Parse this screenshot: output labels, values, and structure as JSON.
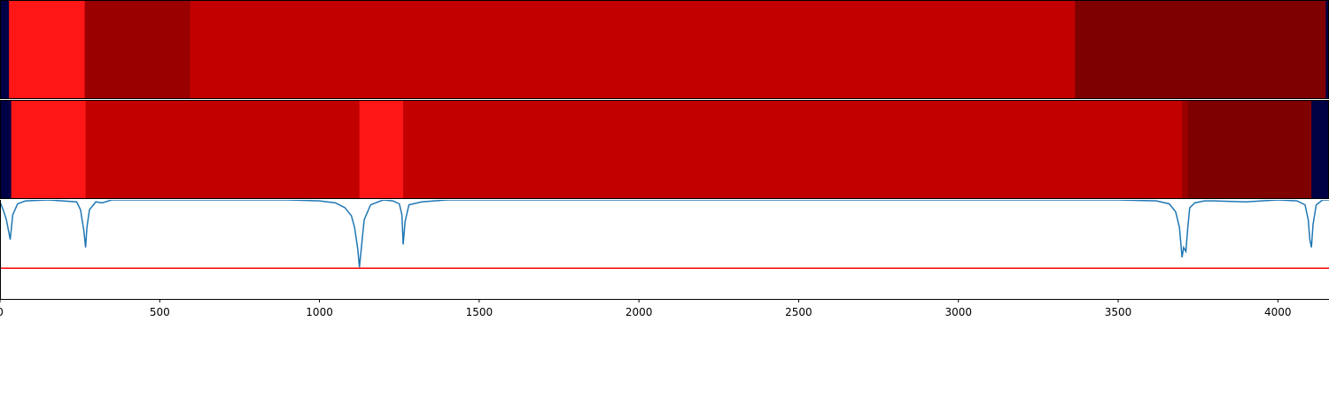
{
  "chart_data": [
    {
      "type": "heatmap",
      "xlim": [
        0,
        4160
      ],
      "segments": [
        {
          "start": 0,
          "end": 28,
          "value": 0.0
        },
        {
          "start": 28,
          "end": 265,
          "value": 0.85
        },
        {
          "start": 265,
          "end": 595,
          "value": 0.55
        },
        {
          "start": 595,
          "end": 3365,
          "value": 0.7
        },
        {
          "start": 3365,
          "end": 4150,
          "value": 0.4
        },
        {
          "start": 4150,
          "end": 4160,
          "value": 0.0
        }
      ]
    },
    {
      "type": "heatmap",
      "xlim": [
        0,
        4160
      ],
      "segments": [
        {
          "start": 0,
          "end": 35,
          "value": 0.0
        },
        {
          "start": 35,
          "end": 268,
          "value": 0.85
        },
        {
          "start": 268,
          "end": 1125,
          "value": 0.7
        },
        {
          "start": 1125,
          "end": 1262,
          "value": 0.85
        },
        {
          "start": 1262,
          "end": 3700,
          "value": 0.7
        },
        {
          "start": 3700,
          "end": 3718,
          "value": 0.6
        },
        {
          "start": 3718,
          "end": 4105,
          "value": 0.4
        },
        {
          "start": 4105,
          "end": 4160,
          "value": 0.0
        }
      ]
    },
    {
      "type": "line",
      "xlim": [
        0,
        4160
      ],
      "ylim": [
        0,
        1
      ],
      "x_ticks": [
        "0",
        "500",
        "1000",
        "1500",
        "2000",
        "2500",
        "3000",
        "3500",
        "4000"
      ],
      "threshold": 0.31,
      "series_color": "#1f77b4",
      "threshold_color": "#ff0000",
      "x": [
        0,
        10,
        20,
        32,
        40,
        55,
        80,
        150,
        240,
        252,
        262,
        268,
        272,
        280,
        300,
        320,
        350,
        600,
        900,
        1000,
        1050,
        1080,
        1100,
        1110,
        1120,
        1125,
        1130,
        1140,
        1160,
        1200,
        1230,
        1250,
        1258,
        1262,
        1268,
        1280,
        1320,
        1400,
        1600,
        2000,
        3000,
        3500,
        3620,
        3660,
        3680,
        3692,
        3700,
        3705,
        3712,
        3718,
        3724,
        3740,
        3770,
        3800,
        3900,
        4000,
        4060,
        4085,
        4095,
        4100,
        4105,
        4110,
        4120,
        4140,
        4160
      ],
      "y": [
        0.98,
        0.9,
        0.8,
        0.6,
        0.85,
        0.96,
        0.99,
        1.0,
        0.98,
        0.9,
        0.7,
        0.52,
        0.72,
        0.9,
        0.98,
        0.97,
        1.0,
        1.0,
        1.0,
        0.99,
        0.97,
        0.92,
        0.84,
        0.72,
        0.5,
        0.32,
        0.48,
        0.8,
        0.95,
        1.0,
        0.99,
        0.96,
        0.85,
        0.55,
        0.78,
        0.95,
        0.98,
        1.0,
        1.0,
        1.0,
        1.0,
        1.0,
        0.99,
        0.96,
        0.88,
        0.72,
        0.42,
        0.52,
        0.48,
        0.72,
        0.92,
        0.97,
        0.99,
        0.99,
        0.98,
        1.0,
        0.99,
        0.95,
        0.8,
        0.6,
        0.52,
        0.75,
        0.95,
        1.0,
        1.0
      ]
    }
  ]
}
